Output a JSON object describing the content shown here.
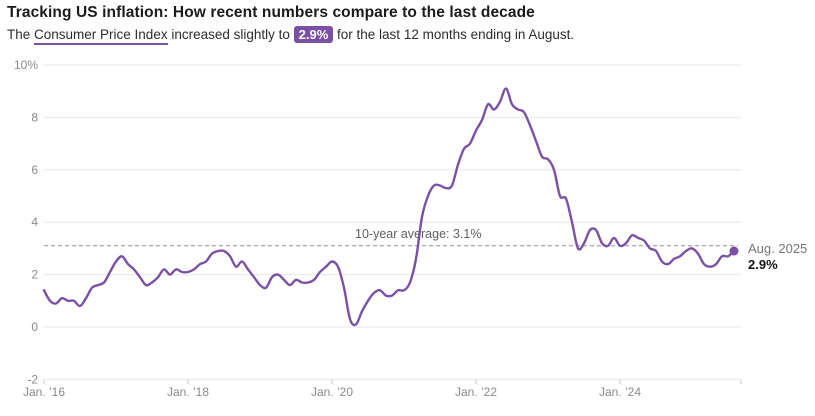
{
  "header": {
    "title": "Tracking US inflation: How recent numbers compare to the last decade",
    "subtitle_prefix": "The ",
    "subtitle_link": "Consumer Price Index",
    "subtitle_mid": " increased slightly to ",
    "subtitle_badge": "2.9%",
    "subtitle_suffix": " for the last 12 months ending in August."
  },
  "colors": {
    "accent_purple": "#7b4fa3",
    "line_purple": "#7c50a5",
    "gridline": "#e7e7e7",
    "tick": "#c9c9c9",
    "axis_label": "#8a8a8a",
    "average_line": "#8f8f8f",
    "average_text": "#5f5f5f",
    "annotation_date": "#757575",
    "annotation_value": "#141414"
  },
  "chart_data": {
    "type": "line",
    "title": "Tracking US inflation: How recent numbers compare to the last decade",
    "series_name": "Consumer Price Index, 12-month change (%)",
    "x_start": "2016-01",
    "x_freq": "monthly",
    "x_end": "2025-08",
    "values": [
      1.4,
      1.0,
      0.9,
      1.1,
      1.0,
      1.0,
      0.8,
      1.1,
      1.5,
      1.6,
      1.7,
      2.1,
      2.5,
      2.7,
      2.4,
      2.2,
      1.9,
      1.6,
      1.7,
      1.9,
      2.2,
      2.0,
      2.2,
      2.1,
      2.1,
      2.2,
      2.4,
      2.5,
      2.8,
      2.9,
      2.9,
      2.7,
      2.3,
      2.5,
      2.2,
      1.9,
      1.6,
      1.5,
      1.9,
      2.0,
      1.8,
      1.6,
      1.8,
      1.7,
      1.7,
      1.8,
      2.1,
      2.3,
      2.5,
      2.3,
      1.5,
      0.3,
      0.1,
      0.6,
      1.0,
      1.3,
      1.4,
      1.2,
      1.2,
      1.4,
      1.4,
      1.7,
      2.6,
      4.2,
      5.0,
      5.4,
      5.4,
      5.3,
      5.4,
      6.2,
      6.8,
      7.0,
      7.5,
      7.9,
      8.5,
      8.3,
      8.6,
      9.1,
      8.5,
      8.3,
      8.2,
      7.7,
      7.1,
      6.5,
      6.4,
      6.0,
      5.0,
      4.9,
      4.0,
      3.0,
      3.2,
      3.7,
      3.7,
      3.2,
      3.1,
      3.4,
      3.1,
      3.2,
      3.5,
      3.4,
      3.3,
      3.0,
      2.9,
      2.5,
      2.4,
      2.6,
      2.7,
      2.9,
      3.0,
      2.8,
      2.4,
      2.3,
      2.4,
      2.7,
      2.7,
      2.9
    ],
    "ylim": [
      -2,
      10
    ],
    "y_ticks": [
      {
        "v": 10,
        "label": "10%"
      },
      {
        "v": 8,
        "label": "8"
      },
      {
        "v": 6,
        "label": "6"
      },
      {
        "v": 4,
        "label": "4"
      },
      {
        "v": 2,
        "label": "2"
      },
      {
        "v": 0,
        "label": "0"
      },
      {
        "v": -2,
        "label": "-2"
      }
    ],
    "x_ticks": [
      {
        "label": "Jan. ’16",
        "month_index": 0
      },
      {
        "label": "Jan. ’18",
        "month_index": 24
      },
      {
        "label": "Jan. ’20",
        "month_index": 48
      },
      {
        "label": "Jan. ’22",
        "month_index": 72
      },
      {
        "label": "Jan. ’24",
        "month_index": 96
      }
    ],
    "grid": true,
    "legend": "none",
    "average_line": {
      "value": 3.1,
      "label": "10-year average: 3.1%"
    },
    "end_annotation": {
      "date_label": "Aug. 2025",
      "value_label": "2.9%",
      "value": 2.9
    }
  }
}
